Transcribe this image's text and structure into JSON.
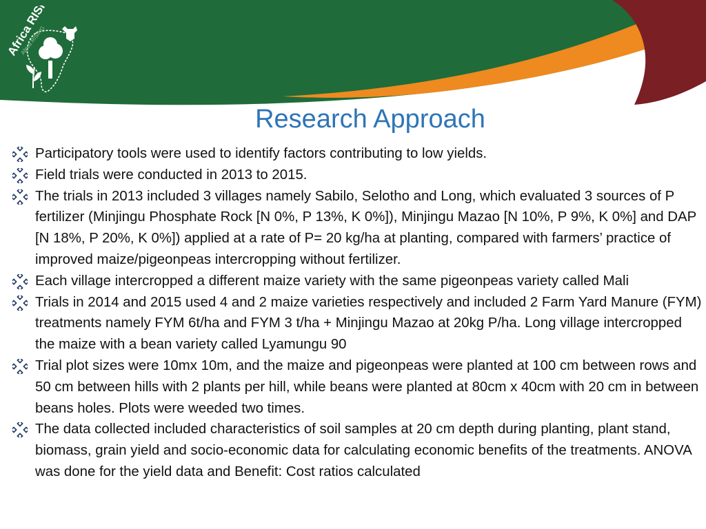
{
  "slide": {
    "logo": {
      "text": "Africa RISING",
      "subtext": "Africa RISING"
    },
    "title": "Research Approach",
    "bullets": [
      "Participatory tools were used to identify factors contributing to low yields.",
      "Field trials were conducted in 2013 to 2015.",
      "The trials in  2013 included 3 villages namely Sabilo, Selotho and Long, which evaluated 3 sources of P fertilizer (Minjingu Phosphate Rock [N 0%, P 13%, K 0%]), Minjingu Mazao [N 10%, P 9%, K 0%] and DAP [N 18%, P 20%, K 0%]) applied at a rate of P= 20 kg/ha at planting, compared with farmers’ practice of improved maize/pigeonpeas intercropping without fertilizer.",
      "Each village intercropped a different  maize variety with the same pigeonpeas variety called Mali",
      "Trials in 2014 and 2015 used 4 and 2 maize varieties respectively and included 2 Farm Yard Manure (FYM) treatments namely FYM 6t/ha and FYM 3 t/ha + Minjingu Mazao at 20kg P/ha.  Long village intercropped the maize with a bean variety called Lyamungu 90",
      "Trial plot sizes were 10mx 10m, and the maize and pigeonpeas were planted at 100 cm between rows and 50 cm between hills with 2 plants per hill, while beans were planted at 80cm x 40cm with 20 cm in between beans holes.  Plots were weeded two times.",
      "The data collected included characteristics of soil samples at 20 cm depth during planting, plant stand, biomass, grain yield and socio-economic data for calculating economic benefits of the treatments. ANOVA was done for the yield data and Benefit: Cost ratios calculated"
    ]
  },
  "colors": {
    "banner_green": "#1f6b3a",
    "banner_orange": "#ee8a1f",
    "banner_maroon": "#7a1f24",
    "title_blue": "#2e75b6",
    "body_text": "#111111",
    "bullet_navy": "#1f3864"
  },
  "icons": {
    "bullet": "four-diamond-icon"
  }
}
